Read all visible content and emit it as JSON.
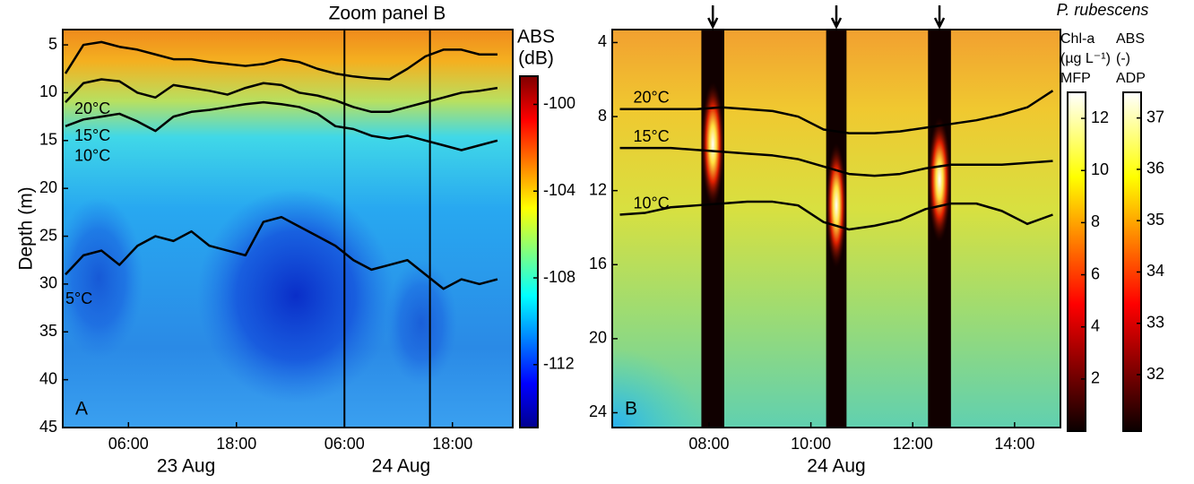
{
  "chart_data": [
    {
      "type": "heatmap",
      "panel_label": "A",
      "annotation": "Zoom panel B",
      "ylabel": "Depth (m)",
      "y_inverted": true,
      "xlim": [
        -1.3,
        48.7
      ],
      "xticks": [
        {
          "value": 6,
          "label": "06:00"
        },
        {
          "value": 18,
          "label": "18:00"
        },
        {
          "value": 30,
          "label": "06:00"
        },
        {
          "value": 42,
          "label": "18:00"
        }
      ],
      "xdates": [
        {
          "value": 12.4,
          "label": "23 Aug"
        },
        {
          "value": 36.3,
          "label": "24 Aug"
        }
      ],
      "ylim": [
        3.4,
        45
      ],
      "yticks": [
        5,
        10,
        15,
        20,
        25,
        30,
        35,
        40,
        45
      ],
      "zoom_lines": [
        30,
        39.5
      ],
      "x": [
        -1,
        1,
        3,
        5,
        7,
        9,
        11,
        13,
        15,
        17,
        19,
        21,
        23,
        25,
        27,
        29,
        31,
        33,
        35,
        37,
        39,
        41,
        43,
        45,
        47
      ],
      "series": [
        {
          "name": "20°C",
          "color": "#000000",
          "values": [
            8,
            5,
            4.7,
            5.2,
            5.5,
            6,
            6.5,
            6.5,
            6.8,
            7,
            7.2,
            7,
            6.5,
            6.8,
            7.5,
            8,
            8.3,
            8.5,
            8.6,
            7.5,
            6.2,
            5.5,
            5.5,
            6,
            6
          ]
        },
        {
          "name": "15°C",
          "color": "#000000",
          "values": [
            11,
            9,
            8.6,
            8.8,
            10,
            10.5,
            9.2,
            9.5,
            9.8,
            10.2,
            9.5,
            9,
            9.2,
            10,
            10.3,
            10.8,
            11.5,
            12,
            12,
            11.5,
            11,
            10.5,
            10,
            9.8,
            9.5
          ]
        },
        {
          "name": "10°C",
          "color": "#000000",
          "values": [
            13.5,
            12.8,
            12.5,
            12.2,
            13,
            14,
            12.5,
            12,
            11.8,
            11.5,
            11.2,
            11,
            11.2,
            11.5,
            12.2,
            13.5,
            13.8,
            14.5,
            14.8,
            14.5,
            15,
            15.5,
            16,
            15.5,
            15
          ]
        },
        {
          "name": "5°C",
          "color": "#000000",
          "values": [
            29,
            27,
            26.5,
            28,
            26,
            25,
            25.5,
            24.5,
            26,
            26.5,
            27,
            23.5,
            23,
            24,
            25,
            26,
            27.5,
            28.5,
            28,
            27.5,
            29,
            30.5,
            29.5,
            30,
            29.5
          ]
        }
      ],
      "colorbars": [
        {
          "label": [
            "ABS",
            "(dB)"
          ],
          "colormap": "jet",
          "clim": [
            -114.9,
            -98.7
          ],
          "ticks": [
            -100,
            -104,
            -108,
            -112
          ]
        }
      ]
    },
    {
      "type": "heatmap",
      "panel_label": "B",
      "title": "P. rubescens",
      "y_inverted": true,
      "xlim": [
        6.1,
        14.9
      ],
      "xticks": [
        {
          "value": 8,
          "label": "08:00"
        },
        {
          "value": 10,
          "label": "10:00"
        },
        {
          "value": 12,
          "label": "12:00"
        },
        {
          "value": 14,
          "label": "14:00"
        }
      ],
      "xdates": [
        {
          "value": 10.5,
          "label": "24 Aug"
        }
      ],
      "ylim": [
        3.3,
        24.8
      ],
      "yticks": [
        4,
        8,
        12,
        16,
        20,
        24
      ],
      "profiles": [
        {
          "x_start": 7.85,
          "x_end": 8.3,
          "peak_depth": 9.5
        },
        {
          "x_start": 10.3,
          "x_end": 10.7,
          "peak_depth": 12.8
        },
        {
          "x_start": 12.3,
          "x_end": 12.75,
          "peak_depth": 11.4
        }
      ],
      "x": [
        6.25,
        6.75,
        7.25,
        7.75,
        8.25,
        8.75,
        9.25,
        9.75,
        10.25,
        10.75,
        11.25,
        11.75,
        12.25,
        12.75,
        13.25,
        13.75,
        14.25,
        14.75
      ],
      "series": [
        {
          "name": "20°C",
          "color": "#000000",
          "values": [
            7.6,
            7.6,
            7.6,
            7.6,
            7.5,
            7.6,
            7.7,
            8.0,
            8.7,
            8.9,
            8.9,
            8.8,
            8.6,
            8.4,
            8.2,
            7.9,
            7.5,
            6.6
          ]
        },
        {
          "name": "15°C",
          "color": "#000000",
          "values": [
            9.7,
            9.7,
            9.7,
            9.8,
            9.9,
            10.0,
            10.1,
            10.3,
            10.7,
            11.1,
            11.2,
            11.1,
            10.8,
            10.6,
            10.6,
            10.6,
            10.5,
            10.4
          ]
        },
        {
          "name": "10°C",
          "color": "#000000",
          "values": [
            13.3,
            13.2,
            12.9,
            12.8,
            12.7,
            12.6,
            12.6,
            12.8,
            13.7,
            14.1,
            13.9,
            13.6,
            13.0,
            12.7,
            12.7,
            13.1,
            13.8,
            13.3
          ]
        }
      ],
      "colorbars": [
        {
          "label": [
            "Chl-a",
            "(µg L⁻¹)",
            "MFP"
          ],
          "colormap": "hot",
          "clim": [
            0,
            13
          ],
          "ticks": [
            2,
            4,
            6,
            8,
            10,
            12
          ]
        },
        {
          "label": [
            "ABS",
            "(-)",
            "ADP"
          ],
          "colormap": "hot",
          "clim": [
            30.9,
            37.5
          ],
          "ticks": [
            32,
            33,
            34,
            35,
            36,
            37
          ]
        }
      ]
    }
  ]
}
